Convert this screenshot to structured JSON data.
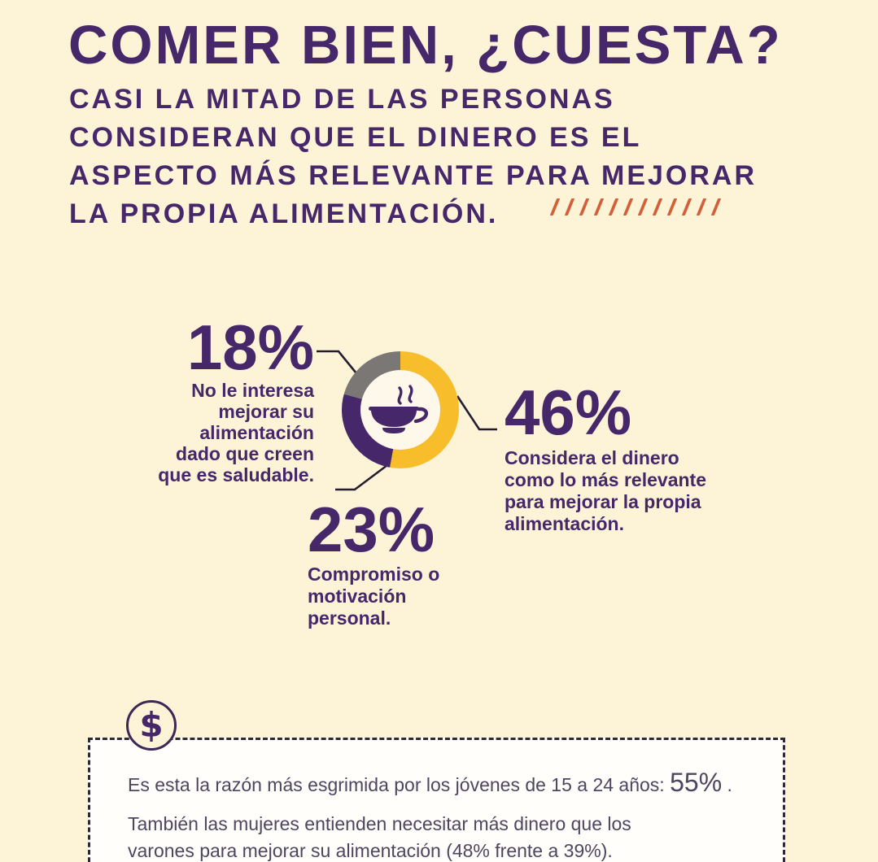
{
  "page_background": "#fdf3d6",
  "header": {
    "title": "COMER BIEN, ¿CUESTA?",
    "subtitle": "CASI LA MITAD DE LAS PERSONAS\nCONSIDERAN QUE EL DINERO ES EL\nASPECTO MÁS RELEVANTE PARA MEJORAR\nLA PROPIA ALIMENTACIÓN.",
    "decor_slashes": {
      "count": 12,
      "color": "#d2603a"
    }
  },
  "chart_data": {
    "type": "pie",
    "donut": true,
    "title": "Aspecto más relevante para mejorar la propia alimentación",
    "labels": [
      "Considera el dinero como lo más relevante para mejorar la propia alimentación.",
      "Compromiso o motivación personal.",
      "No le interesa mejorar su alimentación dado que creen que es saludable."
    ],
    "values": [
      46,
      23,
      18
    ],
    "colors": [
      "#f7bd2b",
      "#45276a",
      "#7b7774"
    ],
    "start_angle_deg": 0,
    "legend_position": "callout-labels",
    "center_icon": "soup-bowl-icon"
  },
  "stats": {
    "money": {
      "value": "46%",
      "desc": "Considera el dinero\ncomo lo más relevante\npara mejorar la propia\nalimentación."
    },
    "no_interest": {
      "value": "18%",
      "desc": "No le interesa\nmejorar su\nalimentación\ndado que creen\nque es saludable."
    },
    "motivation": {
      "value": "23%",
      "desc": "Compromiso o\nmotivación\npersonal."
    }
  },
  "footnote": {
    "icon": "dollar-icon",
    "dollar_symbol": "$",
    "line1_prefix": "Es esta la razón más esgrimida por los jóvenes de 15 a 24 años: ",
    "line1_stat": "55%",
    "line1_suffix": " .",
    "line2": "También las mujeres entienden necesitar más dinero que los\nvarones para mejorar su alimentación (48% frente a 39%)."
  },
  "colors": {
    "purple": "#45276a",
    "yellow": "#f7bd2b",
    "gray": "#7b7774",
    "orange_slash": "#d2603a",
    "footnote_text": "#4e4660",
    "dashed_border": "#2d2833",
    "background": "#fdf3d6",
    "box_background": "#fffefa"
  }
}
